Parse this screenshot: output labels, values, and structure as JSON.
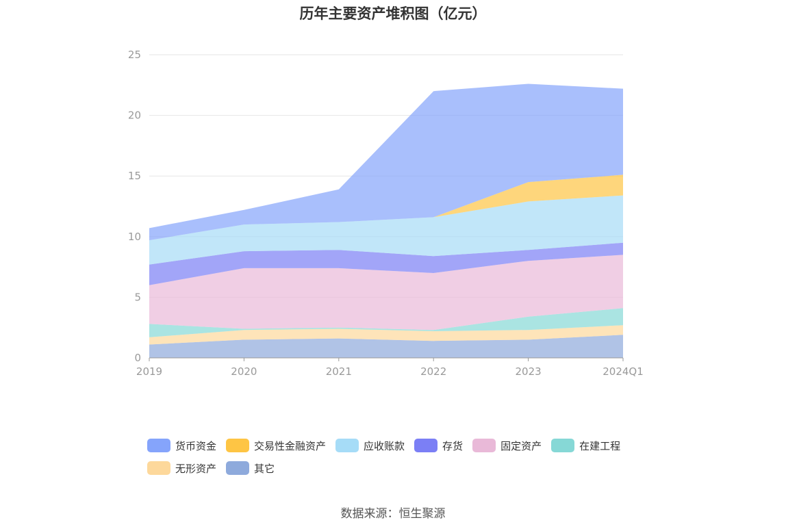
{
  "chart_data": {
    "type": "area",
    "stacked": true,
    "title": "历年主要资产堆积图（亿元）",
    "categories": [
      "2019",
      "2020",
      "2021",
      "2022",
      "2023",
      "2024Q1"
    ],
    "ylim": [
      0,
      25
    ],
    "yticks": [
      0,
      5,
      10,
      15,
      20,
      25
    ],
    "grid": true,
    "legend_position": "bottom",
    "series": [
      {
        "name": "其它",
        "color": "#8eaadc",
        "values": [
          1.1,
          1.5,
          1.6,
          1.4,
          1.5,
          1.9
        ]
      },
      {
        "name": "无形资产",
        "color": "#fdd89b",
        "values": [
          0.6,
          0.8,
          0.8,
          0.8,
          0.8,
          0.8
        ]
      },
      {
        "name": "在建工程",
        "color": "#86d8d6",
        "values": [
          1.1,
          0.1,
          0.1,
          0.1,
          1.1,
          1.4
        ]
      },
      {
        "name": "固定资产",
        "color": "#e9b9d8",
        "values": [
          3.2,
          5.0,
          4.9,
          4.7,
          4.6,
          4.4
        ]
      },
      {
        "name": "存货",
        "color": "#7b7ff5",
        "values": [
          1.7,
          1.4,
          1.5,
          1.4,
          0.9,
          1.0
        ]
      },
      {
        "name": "应收账款",
        "color": "#a6dcf7",
        "values": [
          2.0,
          2.2,
          2.3,
          3.2,
          4.0,
          3.9
        ]
      },
      {
        "name": "交易性金融资产",
        "color": "#fec544",
        "values": [
          0,
          0,
          0,
          0,
          1.6,
          1.7
        ]
      },
      {
        "name": "货币资金",
        "color": "#85a4fb",
        "values": [
          1.0,
          1.2,
          2.7,
          10.4,
          8.1,
          7.1
        ]
      }
    ]
  },
  "legend_order": [
    "货币资金",
    "交易性金融资产",
    "应收账款",
    "存货",
    "固定资产",
    "在建工程",
    "无形资产",
    "其它"
  ],
  "source": "数据来源：恒生聚源"
}
